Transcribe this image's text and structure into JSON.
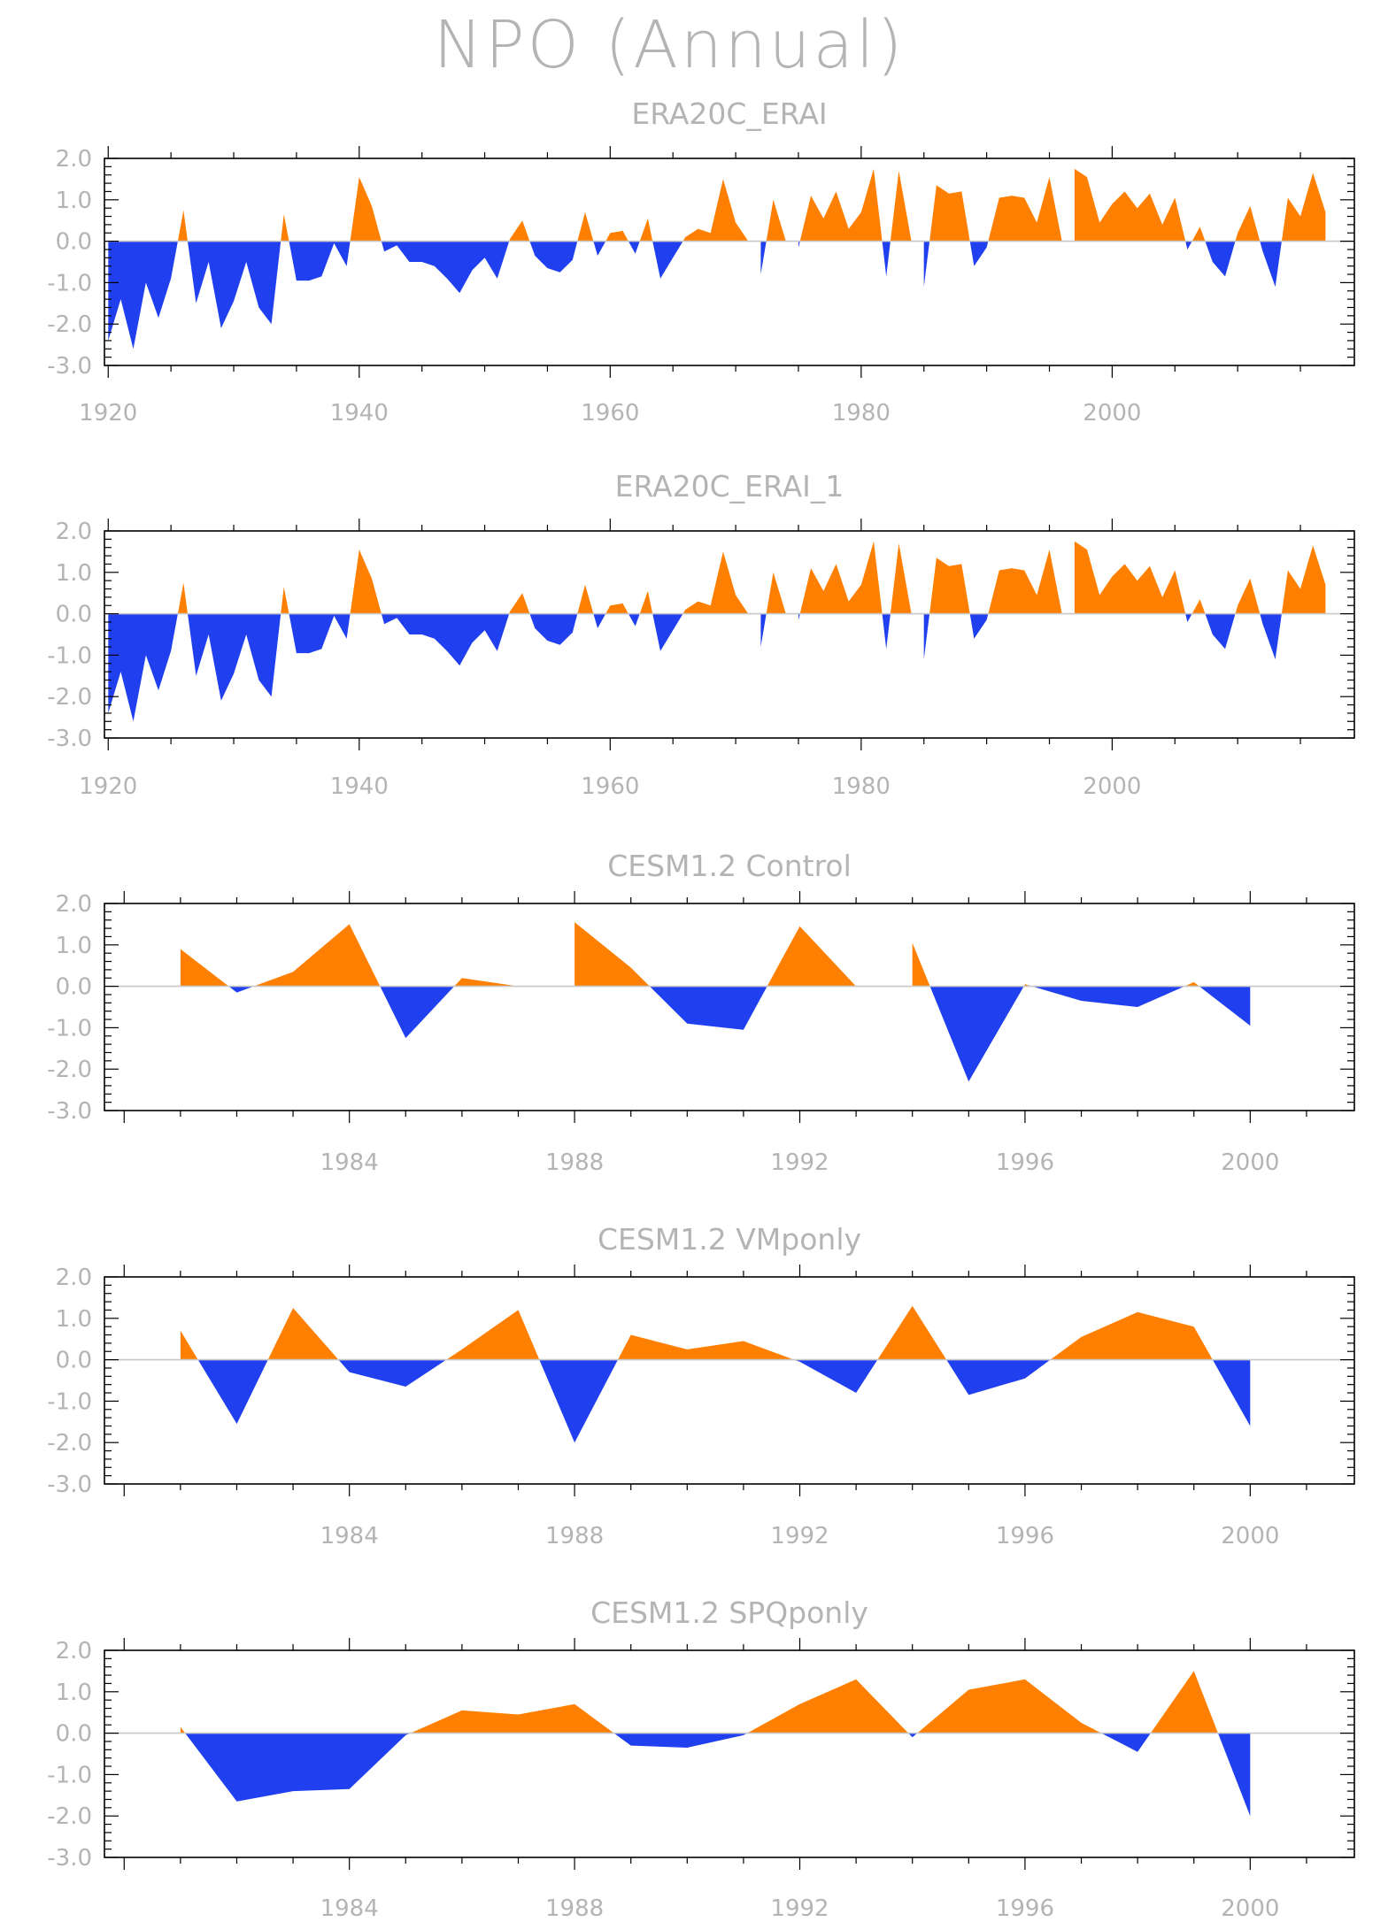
{
  "title": "NPO (Annual)",
  "colors": {
    "positive": "#ff8000",
    "negative": "#2040f0",
    "text": "#b4b4b4",
    "axis": "#000000"
  },
  "chart_data": [
    {
      "type": "area",
      "title": "ERA20C_ERAI",
      "ylim": [
        -3.0,
        2.0
      ],
      "yticks": [
        "2.0",
        "1.0",
        "0.0",
        "-1.0",
        "-2.0",
        "-3.0"
      ],
      "xlim": [
        1919.7,
        2019.3
      ],
      "xticks": [
        1920,
        1940,
        1960,
        1980,
        2000
      ],
      "grid": false,
      "x": [
        1920,
        1921,
        1922,
        1923,
        1924,
        1925,
        1926,
        1927,
        1928,
        1929,
        1930,
        1931,
        1932,
        1933,
        1934,
        1935,
        1936,
        1937,
        1938,
        1939,
        1940,
        1941,
        1942,
        1943,
        1944,
        1945,
        1946,
        1947,
        1948,
        1949,
        1950,
        1951,
        1952,
        1953,
        1954,
        1955,
        1956,
        1957,
        1958,
        1959,
        1960,
        1961,
        1962,
        1963,
        1964,
        1965,
        1966,
        1967,
        1968,
        1969,
        1970,
        1971,
        1972,
        1973,
        1974,
        1975,
        1976,
        1977,
        1978,
        1979,
        1980,
        1981,
        1982,
        1983,
        1984,
        1985,
        1986,
        1987,
        1988,
        1989,
        1990,
        1991,
        1992,
        1993,
        1994,
        1995,
        1996,
        1997,
        1998,
        1999,
        2000,
        2001,
        2002,
        2003,
        2004,
        2005,
        2006,
        2007,
        2008,
        2009,
        2010,
        2011,
        2012,
        2013,
        2014,
        2015,
        2016,
        2017
      ],
      "values": [
        -2.4,
        -1.4,
        -2.6,
        -1.0,
        -1.85,
        -0.9,
        0.75,
        -1.5,
        -0.5,
        -2.1,
        -1.45,
        -0.5,
        -1.6,
        -2.0,
        0.65,
        -0.95,
        -0.95,
        -0.85,
        -0.05,
        -0.6,
        1.55,
        0.85,
        -0.25,
        -0.1,
        -0.5,
        -0.5,
        -0.6,
        -0.9,
        -1.25,
        -0.7,
        -0.4,
        -0.9,
        0.05,
        0.5,
        -0.35,
        -0.65,
        -0.75,
        -0.45,
        0.7,
        -0.35,
        0.2,
        0.25,
        -0.3,
        0.55,
        -0.9,
        -0.4,
        0.1,
        0.3,
        0.2,
        1.5,
        0.45,
        0.0,
        -0.8,
        1.0,
        0.0,
        -0.15,
        1.1,
        0.55,
        1.2,
        0.3,
        0.7,
        1.75,
        -0.85,
        1.7,
        0.0,
        -1.1,
        1.35,
        1.15,
        1.2,
        -0.6,
        -0.15,
        1.05,
        1.1,
        1.05,
        0.45,
        1.55,
        0.0,
        1.75,
        1.55,
        0.45,
        0.9,
        1.2,
        0.8,
        1.15,
        0.4,
        1.05,
        -0.2,
        0.35,
        -0.5,
        -0.85,
        0.2,
        0.85,
        -0.25,
        -1.1,
        1.05,
        0.6,
        1.65,
        0.7
      ]
    },
    {
      "type": "area",
      "title": "ERA20C_ERAI_1",
      "ylim": [
        -3.0,
        2.0
      ],
      "yticks": [
        "2.0",
        "1.0",
        "0.0",
        "-1.0",
        "-2.0",
        "-3.0"
      ],
      "xlim": [
        1919.7,
        2019.3
      ],
      "xticks": [
        1920,
        1940,
        1960,
        1980,
        2000
      ],
      "grid": false,
      "x": [
        1920,
        1921,
        1922,
        1923,
        1924,
        1925,
        1926,
        1927,
        1928,
        1929,
        1930,
        1931,
        1932,
        1933,
        1934,
        1935,
        1936,
        1937,
        1938,
        1939,
        1940,
        1941,
        1942,
        1943,
        1944,
        1945,
        1946,
        1947,
        1948,
        1949,
        1950,
        1951,
        1952,
        1953,
        1954,
        1955,
        1956,
        1957,
        1958,
        1959,
        1960,
        1961,
        1962,
        1963,
        1964,
        1965,
        1966,
        1967,
        1968,
        1969,
        1970,
        1971,
        1972,
        1973,
        1974,
        1975,
        1976,
        1977,
        1978,
        1979,
        1980,
        1981,
        1982,
        1983,
        1984,
        1985,
        1986,
        1987,
        1988,
        1989,
        1990,
        1991,
        1992,
        1993,
        1994,
        1995,
        1996,
        1997,
        1998,
        1999,
        2000,
        2001,
        2002,
        2003,
        2004,
        2005,
        2006,
        2007,
        2008,
        2009,
        2010,
        2011,
        2012,
        2013,
        2014,
        2015,
        2016,
        2017
      ],
      "values": [
        -2.4,
        -1.4,
        -2.6,
        -1.0,
        -1.85,
        -0.9,
        0.75,
        -1.5,
        -0.5,
        -2.1,
        -1.45,
        -0.5,
        -1.6,
        -2.0,
        0.65,
        -0.95,
        -0.95,
        -0.85,
        -0.05,
        -0.6,
        1.55,
        0.85,
        -0.25,
        -0.1,
        -0.5,
        -0.5,
        -0.6,
        -0.9,
        -1.25,
        -0.7,
        -0.4,
        -0.9,
        0.05,
        0.5,
        -0.35,
        -0.65,
        -0.75,
        -0.45,
        0.7,
        -0.35,
        0.2,
        0.25,
        -0.3,
        0.55,
        -0.9,
        -0.4,
        0.1,
        0.3,
        0.2,
        1.5,
        0.45,
        0.0,
        -0.8,
        1.0,
        0.0,
        -0.15,
        1.1,
        0.55,
        1.2,
        0.3,
        0.7,
        1.75,
        -0.85,
        1.7,
        0.0,
        -1.1,
        1.35,
        1.15,
        1.2,
        -0.6,
        -0.15,
        1.05,
        1.1,
        1.05,
        0.45,
        1.55,
        0.0,
        1.75,
        1.55,
        0.45,
        0.9,
        1.2,
        0.8,
        1.15,
        0.4,
        1.05,
        -0.2,
        0.35,
        -0.5,
        -0.85,
        0.2,
        0.85,
        -0.25,
        -1.1,
        1.05,
        0.6,
        1.65,
        0.7
      ]
    },
    {
      "type": "area",
      "title": "CESM1.2 Control",
      "ylim": [
        -3.0,
        2.0
      ],
      "yticks": [
        "2.0",
        "1.0",
        "0.0",
        "-1.0",
        "-2.0",
        "-3.0"
      ],
      "xlim": [
        1979.65,
        2001.85
      ],
      "xticks": [
        1984,
        1988,
        1992,
        1996,
        2000
      ],
      "grid": false,
      "x": [
        1981,
        1982,
        1983,
        1984,
        1985,
        1986,
        1987,
        1988,
        1989,
        1990,
        1991,
        1992,
        1993,
        1994,
        1995,
        1996,
        1997,
        1998,
        1999,
        2000
      ],
      "values": [
        0.9,
        -0.15,
        0.35,
        1.5,
        -1.25,
        0.2,
        0.0,
        1.55,
        0.45,
        -0.9,
        -1.05,
        1.45,
        0.0,
        1.05,
        -2.3,
        0.05,
        -0.35,
        -0.5,
        0.1,
        -0.95
      ]
    },
    {
      "type": "area",
      "title": "CESM1.2 VMponly",
      "ylim": [
        -3.0,
        2.0
      ],
      "yticks": [
        "2.0",
        "1.0",
        "0.0",
        "-1.0",
        "-2.0",
        "-3.0"
      ],
      "xlim": [
        1979.65,
        2001.85
      ],
      "xticks": [
        1984,
        1988,
        1992,
        1996,
        2000
      ],
      "grid": false,
      "x": [
        1981,
        1982,
        1983,
        1984,
        1985,
        1986,
        1987,
        1988,
        1989,
        1990,
        1991,
        1992,
        1993,
        1994,
        1995,
        1996,
        1997,
        1998,
        1999,
        2000
      ],
      "values": [
        0.7,
        -1.55,
        1.25,
        -0.3,
        -0.65,
        0.25,
        1.2,
        -2.0,
        0.6,
        0.25,
        0.45,
        -0.05,
        -0.8,
        1.3,
        -0.85,
        -0.45,
        0.55,
        1.15,
        0.8,
        -1.6
      ]
    },
    {
      "type": "area",
      "title": "CESM1.2 SPQponly",
      "ylim": [
        -3.0,
        2.0
      ],
      "yticks": [
        "2.0",
        "1.0",
        "0.0",
        "-1.0",
        "-2.0",
        "-3.0"
      ],
      "xlim": [
        1979.65,
        2001.85
      ],
      "xticks": [
        1984,
        1988,
        1992,
        1996,
        2000
      ],
      "grid": false,
      "x": [
        1981,
        1982,
        1983,
        1984,
        1985,
        1986,
        1987,
        1988,
        1989,
        1990,
        1991,
        1992,
        1993,
        1994,
        1995,
        1996,
        1997,
        1998,
        1999,
        2000
      ],
      "values": [
        0.15,
        -1.65,
        -1.4,
        -1.35,
        -0.05,
        0.55,
        0.45,
        0.7,
        -0.3,
        -0.35,
        -0.05,
        0.7,
        1.3,
        -0.1,
        1.05,
        1.3,
        0.25,
        -0.45,
        1.5,
        -2.0
      ]
    }
  ]
}
